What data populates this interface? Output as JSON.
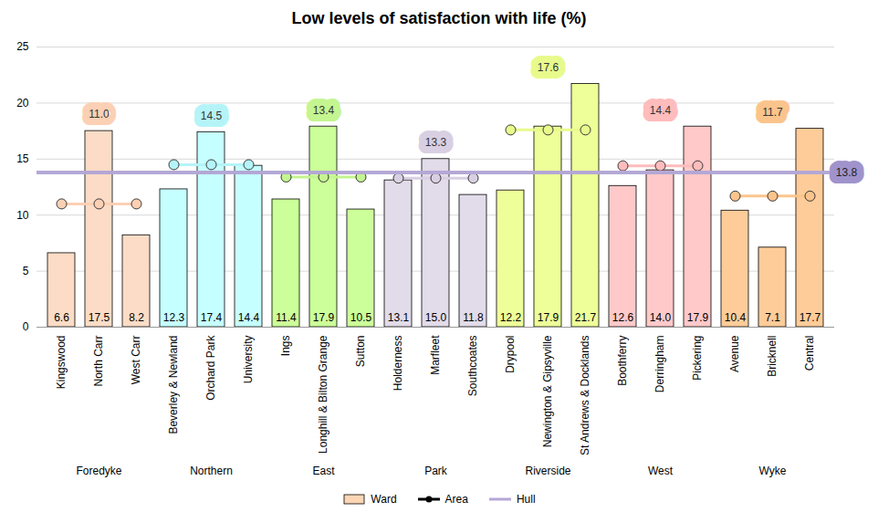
{
  "chart_data": {
    "type": "bar",
    "title": "Low levels of satisfaction with life (%)",
    "categories": [
      "Kingswood",
      "North Carr",
      "West Carr",
      "Beverley & Newland",
      "Orchard Park",
      "University",
      "Ings",
      "Longhill & Bilton Grange",
      "Sutton",
      "Holderness",
      "Marfleet",
      "Southcoates",
      "Drypool",
      "Newington & Gipsyville",
      "St Andrews & Docklands",
      "Boothferry",
      "Derringham",
      "Pickering",
      "Avenue",
      "Bricknell",
      "Central"
    ],
    "groups": [
      "Foredyke",
      "Foredyke",
      "Foredyke",
      "Northern",
      "Northern",
      "Northern",
      "East",
      "East",
      "East",
      "Park",
      "Park",
      "Park",
      "Riverside",
      "Riverside",
      "Riverside",
      "West",
      "West",
      "West",
      "Wyke",
      "Wyke",
      "Wyke"
    ],
    "series": [
      {
        "name": "Ward",
        "type": "bar",
        "color": "#fcd5b5",
        "values": [
          6.6,
          17.5,
          8.2,
          12.3,
          17.4,
          14.4,
          11.4,
          17.9,
          10.5,
          13.1,
          15.0,
          11.8,
          12.2,
          17.9,
          21.7,
          12.6,
          14.0,
          17.9,
          10.4,
          7.1,
          17.7
        ],
        "value_labels": [
          "6.6",
          "17.5",
          "8.2",
          "12.3",
          "17.4",
          "14.4",
          "11.4",
          "17.9",
          "10.5",
          "13.1",
          "15.0",
          "11.8",
          "12.2",
          "17.9",
          "21.7",
          "12.6",
          "14.0",
          "17.9",
          "10.4",
          "7.1",
          "17.7"
        ],
        "colors": [
          "#fcdcc6",
          "#fcdcc6",
          "#fcdcc6",
          "#c6ffff",
          "#c6ffff",
          "#c6ffff",
          "#ccff99",
          "#ccff99",
          "#ccff99",
          "#e2dbe9",
          "#e2dbe9",
          "#e2dbe9",
          "#eeff99",
          "#eeff99",
          "#eeff99",
          "#ffc9c9",
          "#ffc9c9",
          "#ffc9c9",
          "#fdcc99",
          "#fdcc99",
          "#fdcc99"
        ]
      },
      {
        "name": "Area",
        "type": "line",
        "marker": "circle",
        "color": "#000000",
        "values": [
          11.0,
          11.0,
          11.0,
          14.5,
          14.5,
          14.5,
          13.4,
          13.4,
          13.4,
          13.3,
          13.3,
          13.3,
          17.6,
          17.6,
          17.6,
          14.4,
          14.4,
          14.4,
          11.7,
          11.7,
          11.7
        ],
        "value_labels": [
          "11.0",
          "11.0",
          "11.0",
          "14.5",
          "14.5",
          "14.5",
          "13.4",
          "13.4",
          "13.4",
          "13.3",
          "13.3",
          "13.3",
          "17.6",
          "17.6",
          "17.6",
          "14.4",
          "14.4",
          "14.4",
          "11.7",
          "11.7",
          "11.7"
        ],
        "colors": [
          "#fcd0b4",
          "#fcd0b4",
          "#fcd0b4",
          "#b4f4f8",
          "#b4f4f8",
          "#b4f4f8",
          "#c4f590",
          "#c4f590",
          "#c4f590",
          "#d8d0e2",
          "#d8d0e2",
          "#d8d0e2",
          "#e8fa8c",
          "#e8fa8c",
          "#e8fa8c",
          "#ffbcbc",
          "#ffbcbc",
          "#ffbcbc",
          "#fbc48c",
          "#fbc48c",
          "#fbc48c"
        ]
      },
      {
        "name": "Hull",
        "type": "line",
        "color": "#b4a7d6",
        "values": [
          13.8,
          13.8,
          13.8,
          13.8,
          13.8,
          13.8,
          13.8,
          13.8,
          13.8,
          13.8,
          13.8,
          13.8,
          13.8,
          13.8,
          13.8,
          13.8,
          13.8,
          13.8,
          13.8,
          13.8,
          13.8
        ]
      }
    ],
    "ylim": [
      0,
      25
    ],
    "yticks": [
      0,
      5,
      10,
      15,
      20,
      25
    ],
    "grid": true,
    "data_labels": true,
    "legend": "bottom"
  }
}
